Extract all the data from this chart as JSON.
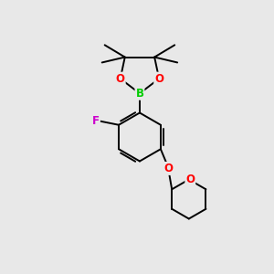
{
  "background_color": "#e8e8e8",
  "bond_color": "#000000",
  "atom_colors": {
    "B": "#00cc00",
    "O": "#ff0000",
    "F": "#cc00cc",
    "C": "#000000"
  },
  "figsize": [
    3.0,
    3.0
  ],
  "dpi": 100
}
